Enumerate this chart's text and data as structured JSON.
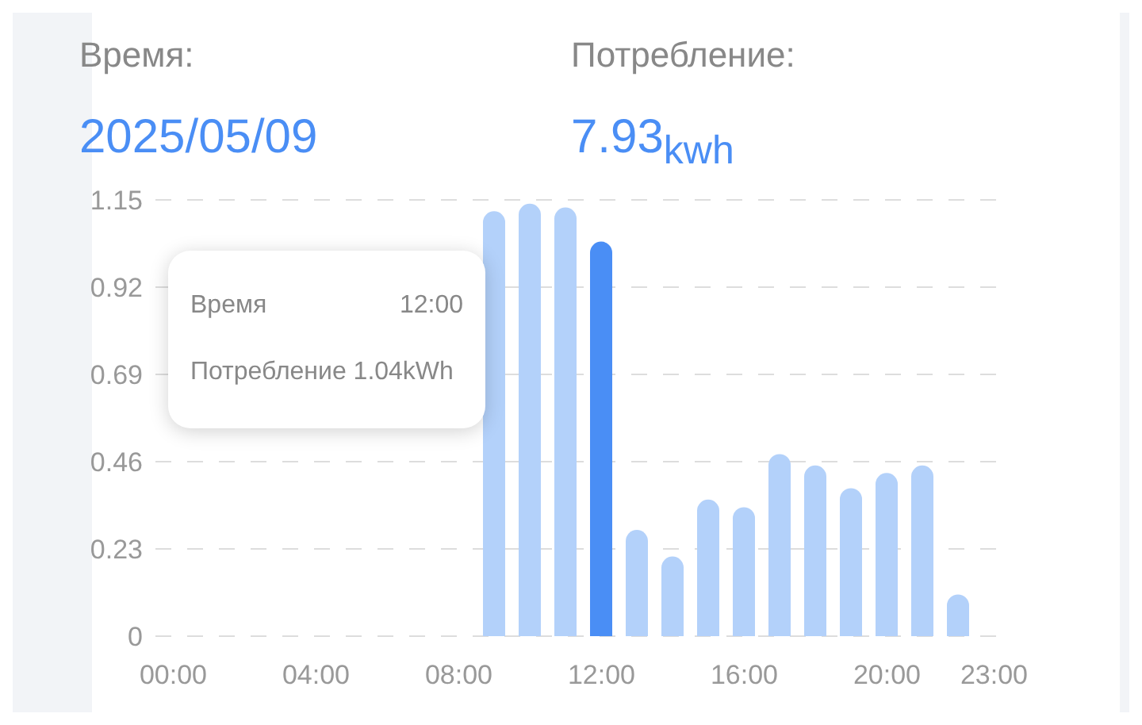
{
  "chart_data": {
    "type": "bar",
    "annotations": [
      "Время:",
      "2025/05/09",
      "Потребление:",
      "7.93$_{kwh}$",
      "Время",
      "12:00",
      "Потребление 1.04kWh"
    ],
    "categories": [
      "00:00",
      null,
      null,
      null,
      "04:00",
      null,
      null,
      null,
      "08:00",
      null,
      null,
      null,
      "12:00",
      null,
      null,
      null,
      "16:00",
      null,
      null,
      null,
      "20:00",
      null,
      null,
      "23:00"
    ],
    "values": [
      0,
      0,
      0,
      0,
      0,
      0,
      0,
      0,
      0,
      1.12,
      1.14,
      1.13,
      1.04,
      0.28,
      0.21,
      0.36,
      0.34,
      0.48,
      0.45,
      0.39,
      0.43,
      0.45,
      0.11,
      0
    ],
    "colors": [
      "#b3d1fa",
      "#b3d1fa",
      "#b3d1fa",
      "#b3d1fa",
      "#b3d1fa",
      "#b3d1fa",
      "#b3d1fa",
      "#b3d1fa",
      "#b3d1fa",
      "#b3d1fa",
      "#b3d1fa",
      "#b3d1fa",
      "#4a8ef5",
      "#b3d1fa",
      "#b3d1fa",
      "#b3d1fa",
      "#b3d1fa",
      "#b3d1fa",
      "#b3d1fa",
      "#b3d1fa",
      "#b3d1fa",
      "#b3d1fa",
      "#b3d1fa",
      "#b3d1fa"
    ],
    "ylim": [
      0,
      1.15
    ],
    "yticks": [
      0,
      0.23,
      0.46,
      0.69,
      0.92,
      1.15
    ],
    "grid": "y"
  }
}
